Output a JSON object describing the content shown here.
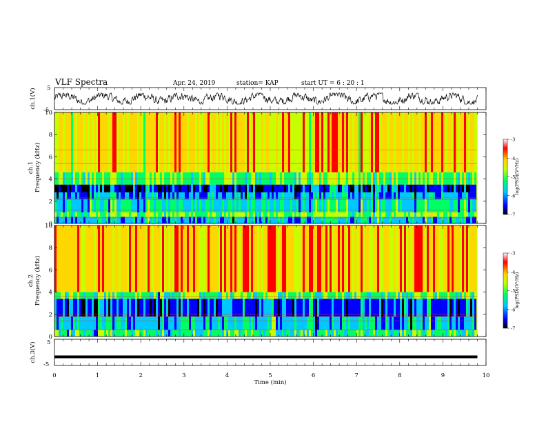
{
  "header": {
    "title": "VLF Spectra",
    "date": "Apr. 24, 2019",
    "station": "station= KAP",
    "start": "start  UT  =   6  : 20 : 1"
  },
  "colors": {
    "waveform": "#000000",
    "colormap": [
      "#000000",
      "#0000ff",
      "#00c8ff",
      "#00ff64",
      "#c8ff00",
      "#ffd700",
      "#ff0000",
      "#ffffff"
    ]
  },
  "chart_data": [
    {
      "type": "line",
      "name": "ch1-waveform",
      "ylabel": "ch.1(V)",
      "ylim": [
        -5,
        5
      ],
      "yticks": [
        "5",
        "-5"
      ],
      "xlim": [
        0,
        10
      ],
      "approx_mean": 0,
      "approx_range": [
        -2.5,
        2.5
      ]
    },
    {
      "type": "heatmap",
      "name": "ch1-spectrogram",
      "ylabel_top": "ch.1",
      "ylabel": "Frequency (kHz)",
      "ylim": [
        0,
        10
      ],
      "yticks": [
        "0",
        "2",
        "4",
        "6",
        "8",
        "10"
      ],
      "xlim": [
        0,
        9.8
      ],
      "colorbar": {
        "label": "log(PSD)(V²/Hz)",
        "range": [
          -7,
          -3
        ],
        "ticks": [
          "-3",
          "-4",
          "-5",
          "-6",
          "-7"
        ]
      },
      "bands": [
        {
          "f": [
            0,
            0.6
          ],
          "level": -5.6
        },
        {
          "f": [
            0.6,
            1.0
          ],
          "level": -4.8
        },
        {
          "f": [
            1.0,
            2.2
          ],
          "level": -5.4
        },
        {
          "f": [
            2.2,
            2.8
          ],
          "level": -5.7
        },
        {
          "f": [
            2.8,
            3.5
          ],
          "level": -6.2
        },
        {
          "f": [
            3.5,
            4.6
          ],
          "level": -4.9
        },
        {
          "f": [
            4.6,
            10
          ],
          "level": -4.0
        }
      ],
      "lines_khz": [
        0.5,
        1.2,
        2.15,
        2.3,
        4.0,
        5.4,
        6.6
      ]
    },
    {
      "type": "heatmap",
      "name": "ch2-spectrogram",
      "ylabel_top": "ch.2",
      "ylabel": "Frequency (kHz)",
      "ylim": [
        0,
        10
      ],
      "yticks": [
        "0",
        "2",
        "4",
        "6",
        "8",
        "10"
      ],
      "xlim": [
        0,
        9.8
      ],
      "colorbar": {
        "label": "log(PSD)(V²/Hz)",
        "range": [
          -7,
          -3
        ],
        "ticks": [
          "-3",
          "-4",
          "-5",
          "-6",
          "-7"
        ]
      },
      "bands": [
        {
          "f": [
            0,
            0.6
          ],
          "level": -5.1
        },
        {
          "f": [
            0.6,
            1.8
          ],
          "level": -5.6
        },
        {
          "f": [
            1.8,
            3.4
          ],
          "level": -6.1
        },
        {
          "f": [
            3.4,
            4.0
          ],
          "level": -5.0
        },
        {
          "f": [
            4.0,
            10
          ],
          "level": -3.9
        }
      ],
      "lines_khz": [
        0.6,
        1.4,
        1.8,
        2.0,
        3.6
      ]
    },
    {
      "type": "line",
      "name": "ch3-waveform",
      "ylabel": "ch.3(V)",
      "ylim": [
        -5,
        5
      ],
      "yticks": [
        "5",
        "-5"
      ],
      "xlim": [
        0,
        9.8
      ],
      "constant_value": -1.7
    }
  ],
  "xaxis": {
    "label": "Time (min)",
    "ticks": [
      "0",
      "1",
      "2",
      "3",
      "4",
      "5",
      "6",
      "7",
      "8",
      "9",
      "10"
    ],
    "range": [
      0,
      10
    ]
  }
}
